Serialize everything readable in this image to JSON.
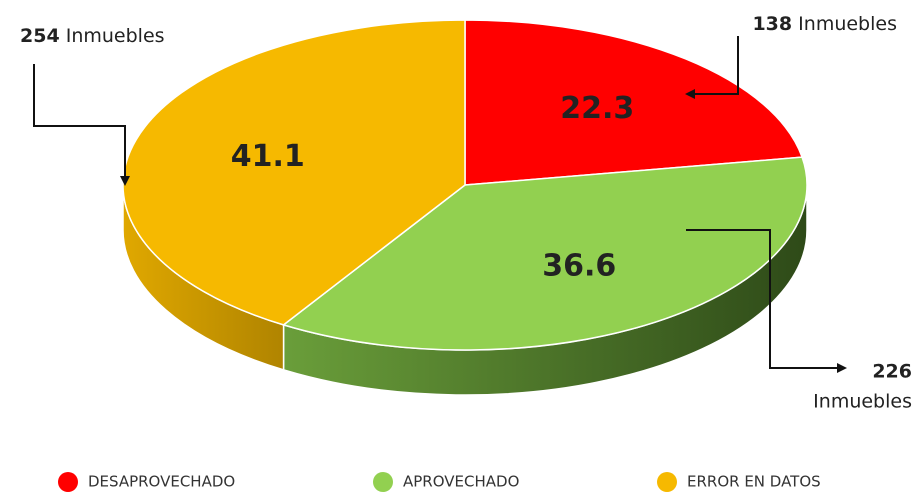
{
  "chart_data": {
    "type": "pie",
    "categories": [
      "DESAPROVECHADO",
      "APROVECHADO",
      "ERROR EN DATOS"
    ],
    "values": [
      22.3,
      36.6,
      41.1
    ],
    "colors": [
      "#ff0000",
      "#92d050",
      "#f6b900"
    ],
    "side_colors": [
      [
        "#c00000",
        "#800000"
      ],
      [
        "#6a9e3a",
        "#2e4a18"
      ],
      [
        "#e0a800",
        "#b08400"
      ]
    ],
    "annotations": [
      {
        "value": 138,
        "text": "Inmuebles"
      },
      {
        "value": 226,
        "text": "Inmuebles"
      },
      {
        "value": 254,
        "text": "Inmuebles"
      }
    ],
    "legend": "bottom"
  }
}
